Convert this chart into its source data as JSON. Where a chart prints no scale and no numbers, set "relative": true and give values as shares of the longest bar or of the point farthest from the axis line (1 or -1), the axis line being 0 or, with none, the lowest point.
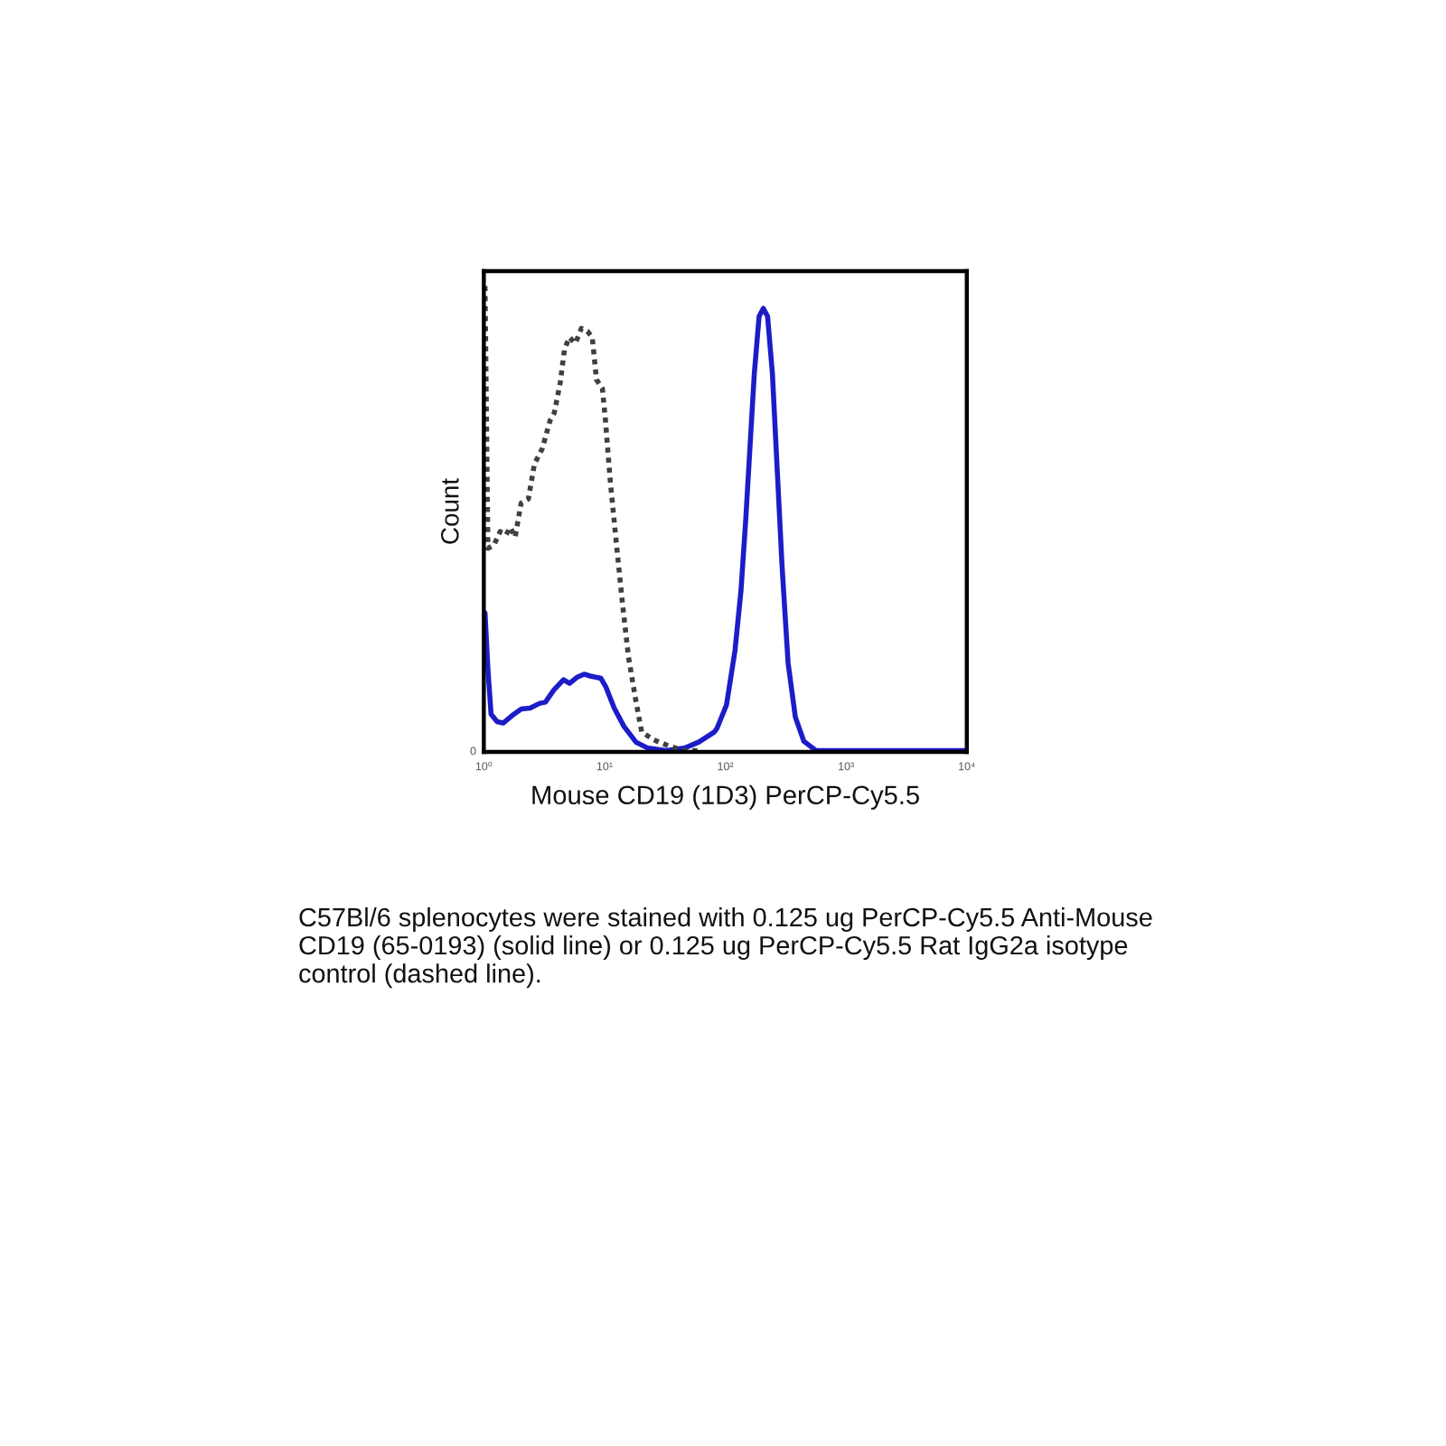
{
  "chart_data": {
    "type": "line",
    "xlabel": "Mouse CD19 (1D3) PerCP-Cy5.5",
    "ylabel": "Count",
    "relative": true,
    "log": "x",
    "grid": false,
    "xlim": [
      1,
      10000
    ],
    "xticks": [
      {
        "value": 1,
        "label": "10⁰"
      },
      {
        "value": 10,
        "label": "10¹"
      },
      {
        "value": 100,
        "label": "10²"
      },
      {
        "value": 1000,
        "label": "10³"
      },
      {
        "value": 10000,
        "label": "10⁴"
      }
    ],
    "series": [
      {
        "color": "#1c1cc8",
        "line_style": "solid",
        "x": [
          1.023,
          1.081,
          1.148,
          1.288,
          1.445,
          1.714,
          2.042,
          2.415,
          2.884,
          3.236,
          3.802,
          4.571,
          5.129,
          5.888,
          6.761,
          7.586,
          9.333,
          10.23,
          12.02,
          14.45,
          18.2,
          22.91,
          32.36,
          45.71,
          60.26,
          81.28,
          85.1,
          102.3,
          120.2,
          134.9,
          147.9,
          160.3,
          173.8,
          190.5,
          206.5,
          223.9,
          245.5,
          269.2,
          295.1,
          331.1,
          380.2,
          446.7,
          562.3,
          1000,
          10000
        ],
        "values": [
          0.298,
          0.178,
          0.081,
          0.065,
          0.062,
          0.078,
          0.092,
          0.094,
          0.104,
          0.107,
          0.133,
          0.155,
          0.147,
          0.16,
          0.167,
          0.163,
          0.158,
          0.14,
          0.094,
          0.055,
          0.021,
          0.008,
          0.003,
          0.008,
          0.021,
          0.043,
          0.05,
          0.101,
          0.217,
          0.347,
          0.502,
          0.657,
          0.812,
          0.935,
          0.952,
          0.935,
          0.812,
          0.605,
          0.399,
          0.191,
          0.075,
          0.023,
          0.003,
          0.003,
          0.003
        ]
      },
      {
        "color": "#404040",
        "line_style": "dotted",
        "x": [
          1.023,
          1.081,
          1.213,
          1.365,
          1.528,
          1.656,
          1.816,
          2.037,
          2.339,
          2.624,
          3.048,
          3.532,
          3.837,
          4.295,
          4.656,
          5.105,
          5.728,
          6.427,
          7.211,
          7.907,
          8.57,
          9.594,
          10.19,
          11.17,
          12.5,
          14.03,
          15.78,
          18.07,
          20.28,
          25.53,
          33.96,
          45.29,
          63.1
        ],
        "values": [
          1,
          0.437,
          0.444,
          0.473,
          0.466,
          0.482,
          0.461,
          0.534,
          0.543,
          0.618,
          0.651,
          0.711,
          0.728,
          0.793,
          0.864,
          0.89,
          0.877,
          0.909,
          0.903,
          0.89,
          0.799,
          0.78,
          0.709,
          0.579,
          0.45,
          0.321,
          0.204,
          0.113,
          0.043,
          0.026,
          0.013,
          0.003,
          0.003
        ]
      }
    ],
    "annotations": [
      "0",
      "C57Bl/6 splenocytes were stained with 0.125 ug PerCP-Cy5.5 Anti-Mouse CD19 (65-0193) (solid line) or 0.125 ug PerCP-Cy5.5 Rat IgG2a isotype control (dashed line)."
    ]
  }
}
